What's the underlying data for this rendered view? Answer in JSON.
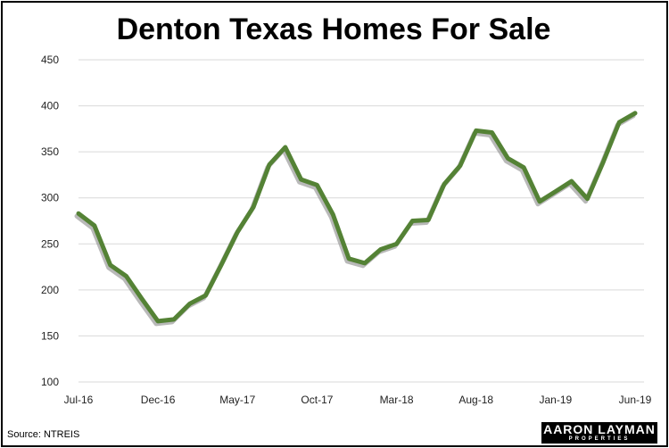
{
  "chart_data": {
    "type": "line",
    "title": "Denton Texas Homes For Sale",
    "xlabel": "",
    "ylabel": "",
    "ylim": [
      100,
      450
    ],
    "yticks": [
      100,
      150,
      200,
      250,
      300,
      350,
      400,
      450
    ],
    "grid": true,
    "x_tick_labels": [
      "Jul-16",
      "Dec-16",
      "May-17",
      "Oct-17",
      "Mar-18",
      "Aug-18",
      "Jan-19",
      "Jun-19"
    ],
    "x": [
      "Jul-16",
      "Aug-16",
      "Sep-16",
      "Oct-16",
      "Nov-16",
      "Dec-16",
      "Jan-17",
      "Feb-17",
      "Mar-17",
      "Apr-17",
      "May-17",
      "Jun-17",
      "Jul-17",
      "Aug-17",
      "Sep-17",
      "Oct-17",
      "Nov-17",
      "Dec-17",
      "Jan-18",
      "Feb-18",
      "Mar-18",
      "Apr-18",
      "May-18",
      "Jun-18",
      "Jul-18",
      "Aug-18",
      "Sep-18",
      "Oct-18",
      "Nov-18",
      "Dec-18",
      "Jan-19",
      "Feb-19",
      "Mar-19",
      "Apr-19",
      "May-19",
      "Jun-19"
    ],
    "series": [
      {
        "values": [
          283,
          270,
          227,
          215,
          190,
          166,
          168,
          185,
          194,
          228,
          263,
          290,
          336,
          355,
          320,
          314,
          282,
          234,
          229,
          244,
          250,
          275,
          276,
          315,
          335,
          373,
          371,
          343,
          333,
          296,
          307,
          318,
          299,
          339,
          382,
          392
        ],
        "color": "#548235"
      }
    ]
  },
  "source": "Source: NTREIS",
  "logo": {
    "main": "AARON LAYMAN",
    "sub": "PROPERTIES"
  }
}
